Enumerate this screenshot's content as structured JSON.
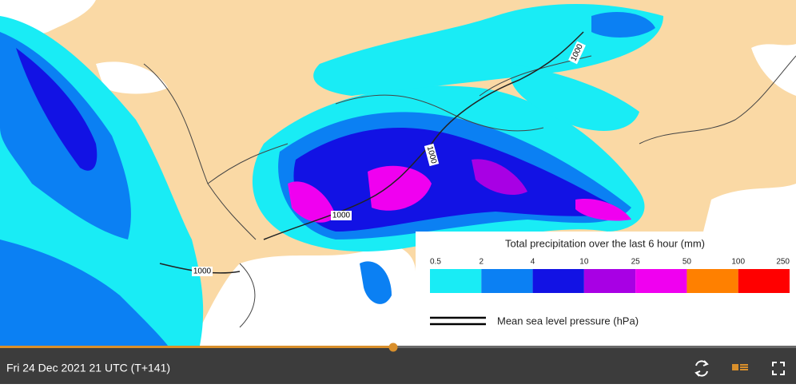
{
  "map": {
    "isobar_labels": [
      "1000",
      "1000",
      "1000",
      "1000"
    ]
  },
  "legend": {
    "title": "Total precipitation over the last 6 hour (mm)",
    "levels": [
      0.5,
      2,
      4,
      10,
      25,
      50,
      100,
      250
    ],
    "colors": [
      "#19ecf5",
      "#0b80f3",
      "#1212e4",
      "#a800e4",
      "#f000f0",
      "#ff8000",
      "#ff0000"
    ],
    "pressure_label": "Mean sea level pressure (hPa)"
  },
  "player": {
    "timestamp": "Fri 24 Dec 2021 21 UTC (T+141)"
  }
}
